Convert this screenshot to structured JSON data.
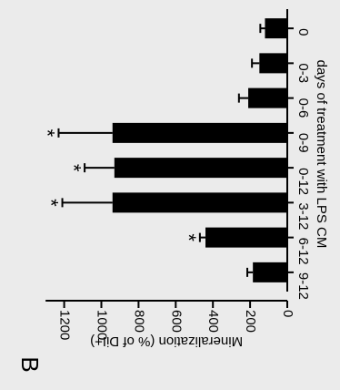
{
  "panel_label": "B",
  "chart_data": {
    "type": "bar",
    "orientation": "rotated-90-clockwise",
    "categories": [
      "0",
      "0-3",
      "0-6",
      "0-9",
      "0-12",
      "3-12",
      "6-12",
      "9-12"
    ],
    "values": [
      120,
      150,
      210,
      940,
      930,
      940,
      440,
      185
    ],
    "errors": [
      25,
      40,
      50,
      290,
      160,
      270,
      30,
      30
    ],
    "significant": [
      false,
      false,
      false,
      true,
      true,
      true,
      true,
      false
    ],
    "significance_marker": "*",
    "xlabel": "days of treatment with LPS CM",
    "ylabel": "Mineralization (% of DiI+)",
    "ylim": [
      0,
      1300
    ],
    "yticks": [
      0,
      200,
      400,
      600,
      800,
      1000,
      1200
    ],
    "grid": false,
    "legend": "none",
    "bar_color": "#000000"
  }
}
